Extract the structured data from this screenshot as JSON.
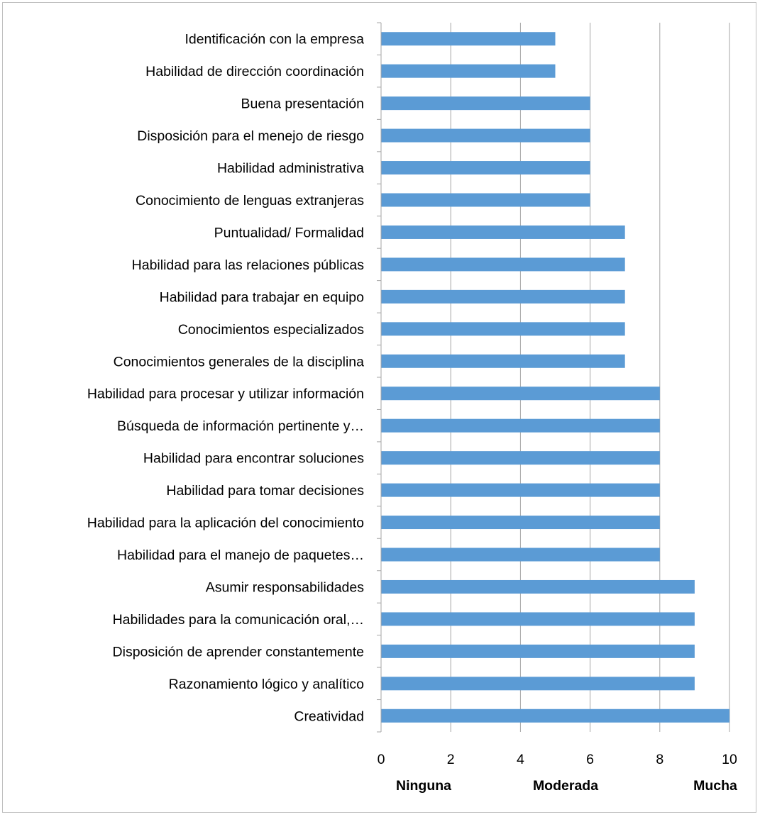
{
  "chart_data": {
    "type": "bar",
    "orientation": "horizontal",
    "categories": [
      "Identificación con la empresa",
      "Habilidad de dirección coordinación",
      "Buena presentación",
      "Disposición para el menejo de riesgo",
      "Habilidad administrativa",
      "Conocimiento de lenguas extranjeras",
      "Puntualidad/ Formalidad",
      "Habilidad para las relaciones públicas",
      "Habilidad para trabajar en equipo",
      "Conocimientos especializados",
      "Conocimientos generales de la disciplina",
      "Habilidad para procesar y utilizar información",
      "Búsqueda de información pertinente y…",
      "Habilidad para encontrar soluciones",
      "Habilidad para tomar decisiones",
      "Habilidad para la aplicación del conocimiento",
      "Habilidad para el manejo de paquetes…",
      "Asumir responsabilidades",
      "Habilidades para la comunicación oral,…",
      "Disposición de aprender constantemente",
      "Razonamiento lógico y analítico",
      "Creatividad"
    ],
    "values": [
      5,
      5,
      6,
      6,
      6,
      6,
      7,
      7,
      7,
      7,
      7,
      8,
      8,
      8,
      8,
      8,
      8,
      9,
      9,
      9,
      9,
      10
    ],
    "xlim": [
      0,
      10
    ],
    "xticks": [
      "0",
      "2",
      "4",
      "6",
      "8",
      "10"
    ],
    "scale_labels": [
      "Ninguna",
      "Moderada",
      "Mucha"
    ],
    "grid": "vertical",
    "legend": "none",
    "bar_color": "#5b9bd5",
    "grid_color": "#a6a6a6"
  }
}
